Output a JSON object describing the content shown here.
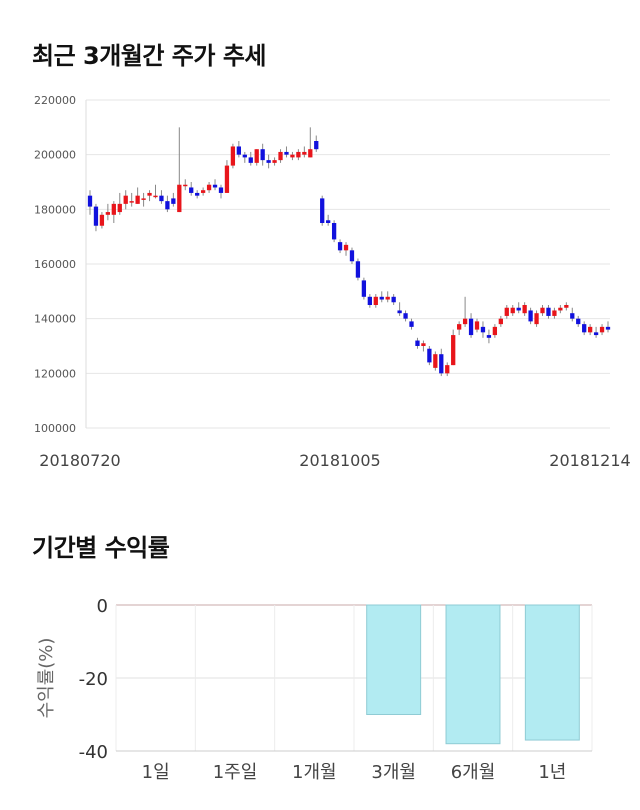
{
  "header": {
    "stock_trend_title": "최근 3개월간 주가 추세"
  },
  "returns_section": {
    "title": "기간별 수익률"
  },
  "chart_data": [
    {
      "type": "candlestick",
      "ylim": [
        100000,
        220000
      ],
      "y_ticks": [
        "220000",
        "200000",
        "180000",
        "160000",
        "140000",
        "120000",
        "100000"
      ],
      "x_tick_labels": [
        "20180720",
        "20181005",
        "20181214"
      ],
      "grid": true,
      "colors": {
        "up": "#e8151b",
        "down": "#1111dd",
        "wick": "#888888"
      },
      "candles": [
        [
          185000,
          187000,
          178000,
          181000
        ],
        [
          181000,
          182000,
          172000,
          174000
        ],
        [
          174000,
          179000,
          173000,
          178000
        ],
        [
          178000,
          182000,
          176000,
          179000
        ],
        [
          178000,
          183000,
          175000,
          182000
        ],
        [
          179000,
          186000,
          178000,
          182000
        ],
        [
          182000,
          187000,
          180000,
          185000
        ],
        [
          183000,
          186000,
          181000,
          183000
        ],
        [
          182000,
          188000,
          182000,
          185000
        ],
        [
          184000,
          186000,
          181000,
          184000
        ],
        [
          185000,
          187000,
          183000,
          186000
        ],
        [
          185000,
          189000,
          184000,
          185000
        ],
        [
          185000,
          187000,
          182000,
          183000
        ],
        [
          183000,
          185000,
          179000,
          180000
        ],
        [
          184000,
          186000,
          181000,
          182000
        ],
        [
          179000,
          210000,
          179000,
          189000
        ],
        [
          189000,
          191000,
          187000,
          189000
        ],
        [
          188000,
          190000,
          185000,
          186000
        ],
        [
          186000,
          187000,
          184000,
          185000
        ],
        [
          186000,
          188000,
          185000,
          187000
        ],
        [
          187000,
          190000,
          186000,
          189000
        ],
        [
          189000,
          191000,
          187000,
          188000
        ],
        [
          188000,
          189000,
          184000,
          186000
        ],
        [
          186000,
          198000,
          186000,
          196000
        ],
        [
          196000,
          204000,
          195000,
          203000
        ],
        [
          203000,
          205000,
          199000,
          200000
        ],
        [
          200000,
          201000,
          197000,
          199000
        ],
        [
          199000,
          201000,
          196000,
          197000
        ],
        [
          197000,
          202000,
          196000,
          202000
        ],
        [
          202000,
          204000,
          196000,
          198000
        ],
        [
          198000,
          200000,
          195000,
          197000
        ],
        [
          197000,
          199000,
          196000,
          198000
        ],
        [
          198000,
          202000,
          197000,
          201000
        ],
        [
          201000,
          203000,
          199000,
          200000
        ],
        [
          199000,
          201000,
          198000,
          200000
        ],
        [
          199000,
          202000,
          198000,
          201000
        ],
        [
          200000,
          203000,
          199000,
          201000
        ],
        [
          199000,
          210000,
          199000,
          202000
        ],
        [
          205000,
          207000,
          201000,
          202000
        ],
        [
          184000,
          185000,
          174000,
          175000
        ],
        [
          176000,
          178000,
          174000,
          175000
        ],
        [
          175000,
          176000,
          168000,
          169000
        ],
        [
          168000,
          169000,
          164000,
          165000
        ],
        [
          165000,
          168000,
          163000,
          167000
        ],
        [
          165000,
          166000,
          160000,
          161000
        ],
        [
          161000,
          162000,
          154000,
          155000
        ],
        [
          154000,
          155000,
          147000,
          148000
        ],
        [
          148000,
          149000,
          144000,
          145000
        ],
        [
          145000,
          149000,
          144000,
          148000
        ],
        [
          148000,
          150000,
          146000,
          147000
        ],
        [
          147000,
          150000,
          146000,
          148000
        ],
        [
          148000,
          149000,
          145000,
          146000
        ],
        [
          143000,
          146000,
          141000,
          142000
        ],
        [
          142000,
          143000,
          139000,
          140000
        ],
        [
          139000,
          140000,
          136000,
          137000
        ],
        [
          132000,
          133000,
          129000,
          130000
        ],
        [
          130000,
          132000,
          128000,
          131000
        ],
        [
          129000,
          130000,
          123000,
          124000
        ],
        [
          122000,
          128000,
          121000,
          127000
        ],
        [
          127000,
          129000,
          119000,
          120000
        ],
        [
          120000,
          124000,
          119000,
          123000
        ],
        [
          123000,
          136000,
          123000,
          134000
        ],
        [
          136000,
          139000,
          134000,
          138000
        ],
        [
          138000,
          148000,
          137000,
          140000
        ],
        [
          140000,
          142000,
          133000,
          134000
        ],
        [
          136000,
          140000,
          135000,
          139000
        ],
        [
          137000,
          139000,
          133000,
          135000
        ],
        [
          134000,
          136000,
          131000,
          133000
        ],
        [
          134000,
          138000,
          133000,
          137000
        ],
        [
          138000,
          141000,
          137000,
          140000
        ],
        [
          141000,
          145000,
          140000,
          144000
        ],
        [
          142000,
          145000,
          141000,
          144000
        ],
        [
          144000,
          146000,
          142000,
          143000
        ],
        [
          142000,
          146000,
          141000,
          145000
        ],
        [
          143000,
          144000,
          138000,
          139000
        ],
        [
          138000,
          143000,
          137000,
          142000
        ],
        [
          142000,
          145000,
          141000,
          144000
        ],
        [
          144000,
          145000,
          140000,
          141000
        ],
        [
          141000,
          144000,
          140000,
          143000
        ],
        [
          143000,
          145000,
          142000,
          144000
        ],
        [
          144000,
          146000,
          143000,
          145000
        ],
        [
          142000,
          144000,
          139000,
          140000
        ],
        [
          140000,
          141000,
          137000,
          138000
        ],
        [
          138000,
          139000,
          134000,
          135000
        ],
        [
          135000,
          138000,
          134000,
          137000
        ],
        [
          135000,
          137000,
          133000,
          134000
        ],
        [
          135000,
          138000,
          134000,
          137000
        ],
        [
          137000,
          139000,
          135000,
          136000
        ]
      ]
    },
    {
      "type": "bar",
      "categories": [
        "1일",
        "1주일",
        "1개월",
        "3개월",
        "6개월",
        "1년"
      ],
      "values": [
        0,
        0,
        0,
        -30,
        -38,
        -37
      ],
      "ylim": [
        -40,
        0
      ],
      "y_ticks": [
        "0",
        "-20",
        "-40"
      ],
      "ylabel": "수익률(%)",
      "grid": true,
      "colors": {
        "bar_fill": "#b2ebf2",
        "bar_stroke": "#8fcbd4"
      }
    }
  ]
}
